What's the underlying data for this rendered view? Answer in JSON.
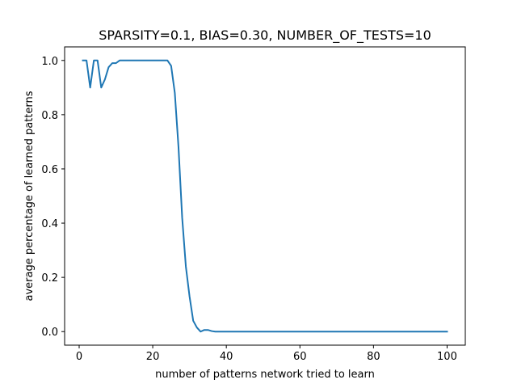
{
  "chart_data": {
    "type": "line",
    "title": "SPARSITY=0.1, BIAS=0.30, NUMBER_OF_TESTS=10",
    "xlabel": "number of patterns network tried to learn",
    "ylabel": "average percentage of learned patterns",
    "xlim": [
      -3.95,
      104.95
    ],
    "ylim": [
      -0.05,
      1.05
    ],
    "xticks": [
      0,
      20,
      40,
      60,
      80,
      100
    ],
    "xtick_labels": [
      "0",
      "20",
      "40",
      "60",
      "80",
      "100"
    ],
    "yticks": [
      0.0,
      0.2,
      0.4,
      0.6,
      0.8,
      1.0
    ],
    "ytick_labels": [
      "0.0",
      "0.2",
      "0.4",
      "0.6",
      "0.8",
      "1.0"
    ],
    "grid": false,
    "series": [
      {
        "color": "#1f77b4",
        "x": [
          1,
          2,
          3,
          4,
          5,
          6,
          7,
          8,
          9,
          10,
          11,
          12,
          13,
          14,
          15,
          16,
          17,
          18,
          19,
          20,
          21,
          22,
          23,
          24,
          25,
          26,
          27,
          28,
          29,
          30,
          31,
          32,
          33,
          34,
          35,
          36,
          37,
          38,
          39,
          40,
          41,
          42,
          43,
          44,
          45,
          46,
          47,
          48,
          49,
          50,
          51,
          52,
          53,
          54,
          55,
          56,
          57,
          58,
          59,
          60,
          61,
          62,
          63,
          64,
          65,
          66,
          67,
          68,
          69,
          70,
          71,
          72,
          73,
          74,
          75,
          76,
          77,
          78,
          79,
          80,
          81,
          82,
          83,
          84,
          85,
          86,
          87,
          88,
          89,
          90,
          91,
          92,
          93,
          94,
          95,
          96,
          97,
          98,
          99,
          100
        ],
        "y": [
          1.0,
          1.0,
          0.9,
          1.0,
          1.0,
          0.9,
          0.93,
          0.975,
          0.99,
          0.99,
          1.0,
          1.0,
          1.0,
          1.0,
          1.0,
          1.0,
          1.0,
          1.0,
          1.0,
          1.0,
          1.0,
          1.0,
          1.0,
          1.0,
          0.98,
          0.88,
          0.68,
          0.42,
          0.24,
          0.13,
          0.04,
          0.015,
          0.0,
          0.006,
          0.006,
          0.002,
          0.0,
          0.0,
          0.0,
          0.0,
          0.0,
          0.0,
          0.0,
          0.0,
          0.0,
          0.0,
          0.0,
          0.0,
          0.0,
          0.0,
          0.0,
          0.0,
          0.0,
          0.0,
          0.0,
          0.0,
          0.0,
          0.0,
          0.0,
          0.0,
          0.0,
          0.0,
          0.0,
          0.0,
          0.0,
          0.0,
          0.0,
          0.0,
          0.0,
          0.0,
          0.0,
          0.0,
          0.0,
          0.0,
          0.0,
          0.0,
          0.0,
          0.0,
          0.0,
          0.0,
          0.0,
          0.0,
          0.0,
          0.0,
          0.0,
          0.0,
          0.0,
          0.0,
          0.0,
          0.0,
          0.0,
          0.0,
          0.0,
          0.0,
          0.0,
          0.0,
          0.0,
          0.0,
          0.0,
          0.0
        ]
      }
    ]
  }
}
